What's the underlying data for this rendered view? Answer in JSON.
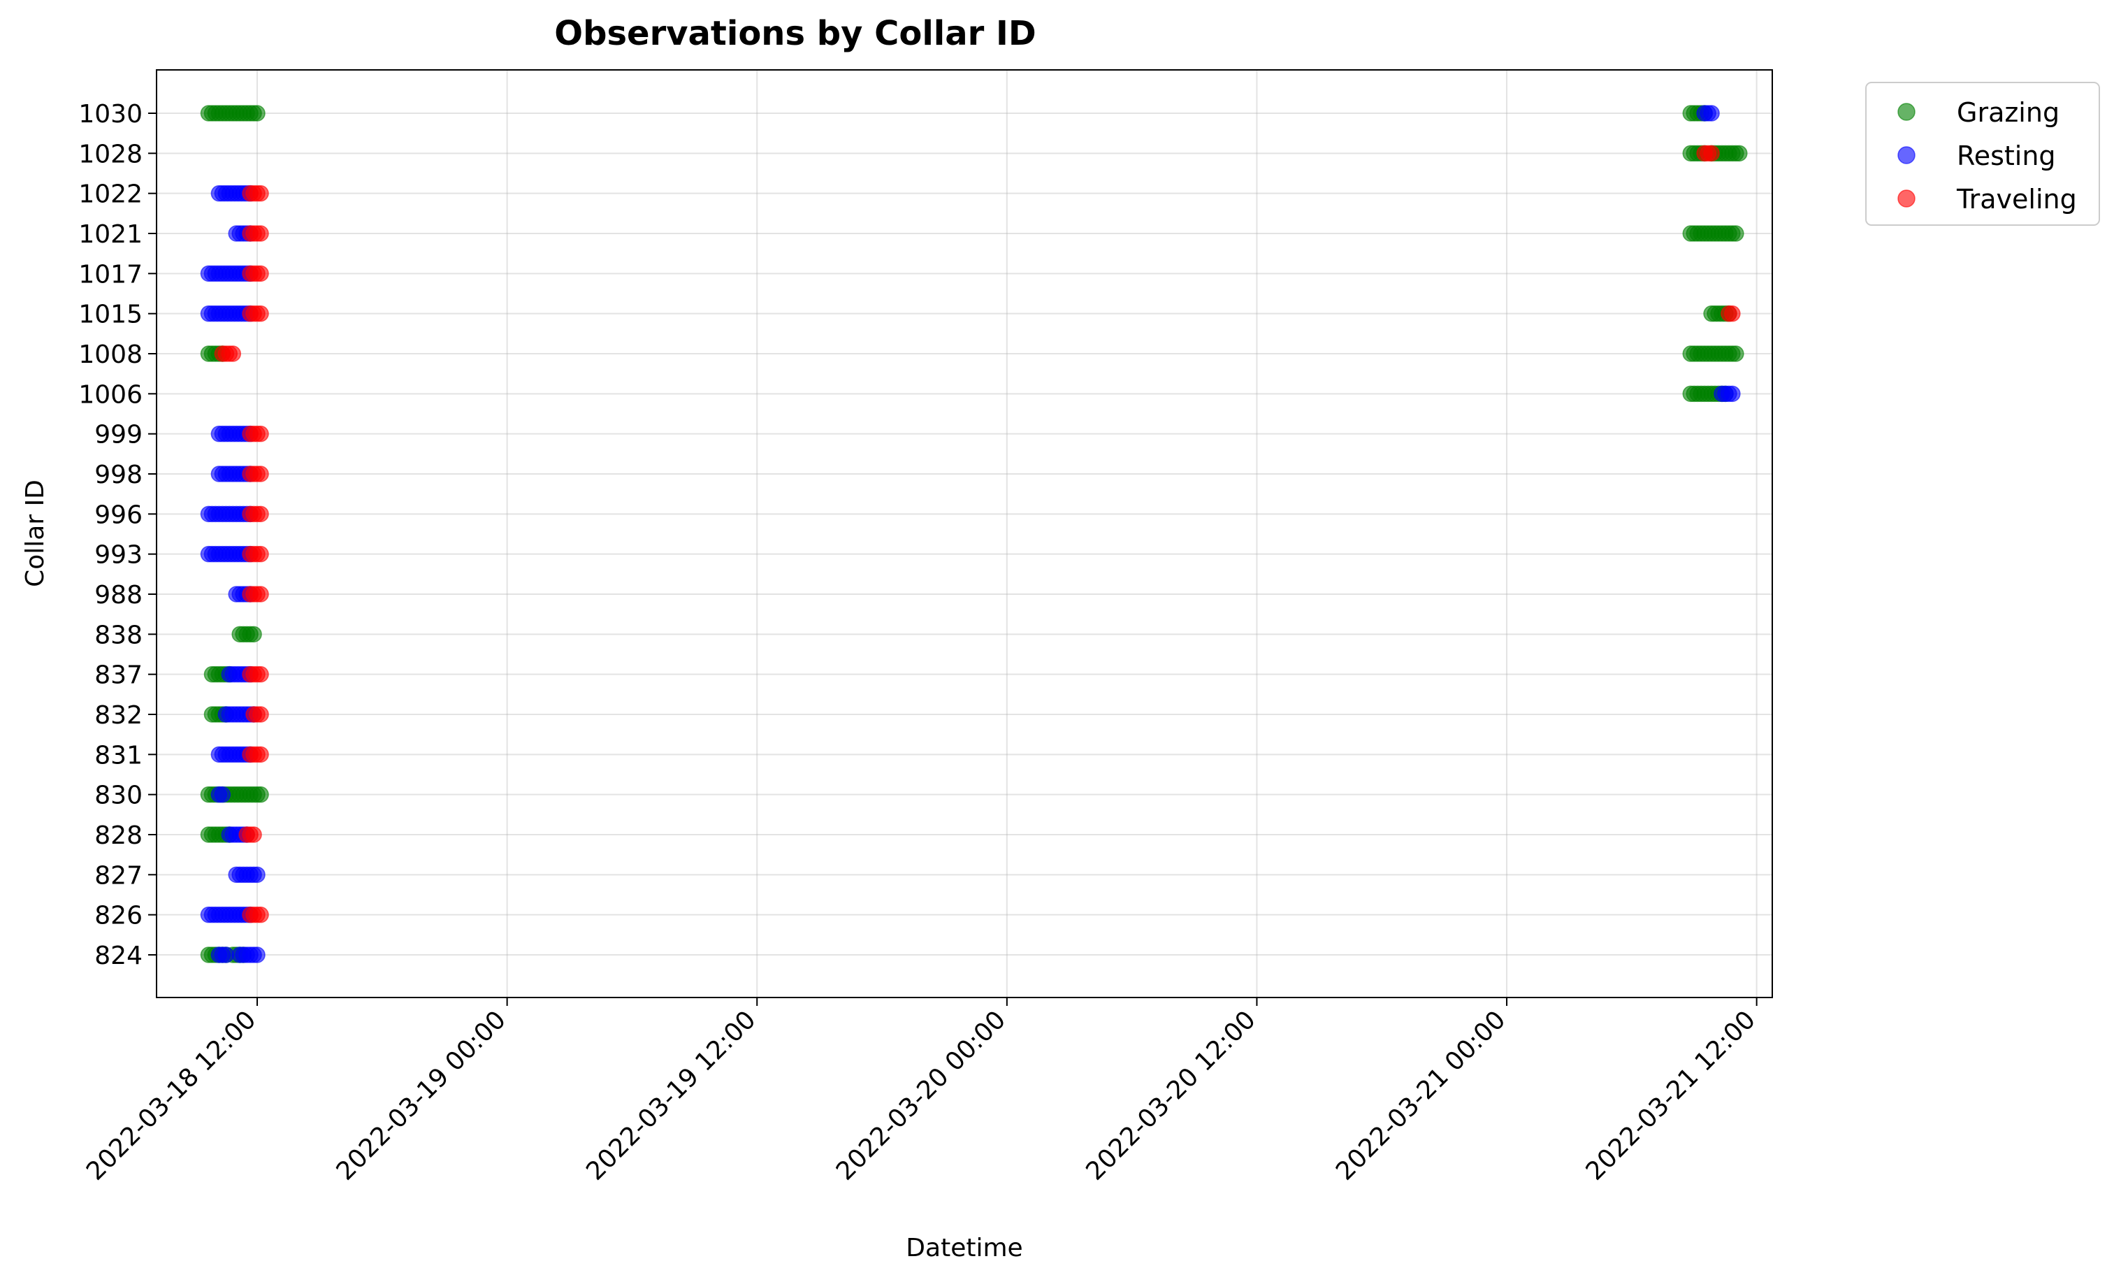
{
  "chart_data": {
    "type": "scatter",
    "title": "Observations by Collar ID",
    "xlabel": "Datetime",
    "ylabel": "Collar ID",
    "x_type": "datetime",
    "xlim": [
      "2022-03-18 07:10",
      "2022-03-21 12:45"
    ],
    "x_ticks": [
      "2022-03-18 12:00",
      "2022-03-19 00:00",
      "2022-03-19 12:00",
      "2022-03-20 00:00",
      "2022-03-20 12:00",
      "2022-03-21 00:00",
      "2022-03-21 12:00"
    ],
    "x_tick_labels": [
      "2022-03-18 12:00",
      "2022-03-19 00:00",
      "2022-03-19 12:00",
      "2022-03-20 00:00",
      "2022-03-20 12:00",
      "2022-03-21 00:00",
      "2022-03-21 12:00"
    ],
    "categories": [
      "824",
      "826",
      "827",
      "828",
      "830",
      "831",
      "832",
      "837",
      "838",
      "988",
      "993",
      "996",
      "998",
      "999",
      "1006",
      "1008",
      "1015",
      "1017",
      "1021",
      "1022",
      "1028",
      "1030"
    ],
    "grid": true,
    "legend_position": "outside-top-right",
    "series": [
      {
        "name": "Grazing",
        "color": "#008000",
        "ranges": [
          [
            "824",
            "2022-03-18 09:40",
            "2022-03-18 10:30"
          ],
          [
            "824",
            "2022-03-18 10:50",
            "2022-03-18 11:20"
          ],
          [
            "828",
            "2022-03-18 09:40",
            "2022-03-18 10:40"
          ],
          [
            "830",
            "2022-03-18 09:40",
            "2022-03-18 10:10"
          ],
          [
            "830",
            "2022-03-18 10:20",
            "2022-03-18 12:10"
          ],
          [
            "832",
            "2022-03-18 09:50",
            "2022-03-18 10:30"
          ],
          [
            "837",
            "2022-03-18 09:50",
            "2022-03-18 10:40"
          ],
          [
            "838",
            "2022-03-18 11:10",
            "2022-03-18 11:50"
          ],
          [
            "1008",
            "2022-03-18 09:40",
            "2022-03-18 10:20"
          ],
          [
            "1030",
            "2022-03-18 09:40",
            "2022-03-18 12:00"
          ],
          [
            "1006",
            "2022-03-21 08:50",
            "2022-03-21 10:30"
          ],
          [
            "1008",
            "2022-03-21 08:50",
            "2022-03-21 11:00"
          ],
          [
            "1015",
            "2022-03-21 09:50",
            "2022-03-21 10:40"
          ],
          [
            "1021",
            "2022-03-21 08:50",
            "2022-03-21 11:00"
          ],
          [
            "1028",
            "2022-03-21 08:50",
            "2022-03-21 09:30"
          ],
          [
            "1028",
            "2022-03-21 09:50",
            "2022-03-21 11:10"
          ],
          [
            "1030",
            "2022-03-21 08:50",
            "2022-03-21 09:30"
          ]
        ]
      },
      {
        "name": "Resting",
        "color": "#0000ff",
        "ranges": [
          [
            "824",
            "2022-03-18 10:10",
            "2022-03-18 10:30"
          ],
          [
            "824",
            "2022-03-18 11:10",
            "2022-03-18 12:00"
          ],
          [
            "826",
            "2022-03-18 09:40",
            "2022-03-18 11:40"
          ],
          [
            "827",
            "2022-03-18 11:00",
            "2022-03-18 12:00"
          ],
          [
            "828",
            "2022-03-18 10:40",
            "2022-03-18 11:30"
          ],
          [
            "830",
            "2022-03-18 10:10",
            "2022-03-18 10:20"
          ],
          [
            "831",
            "2022-03-18 10:10",
            "2022-03-18 11:40"
          ],
          [
            "832",
            "2022-03-18 10:30",
            "2022-03-18 11:50"
          ],
          [
            "837",
            "2022-03-18 10:40",
            "2022-03-18 11:40"
          ],
          [
            "988",
            "2022-03-18 11:00",
            "2022-03-18 11:40"
          ],
          [
            "993",
            "2022-03-18 09:40",
            "2022-03-18 11:40"
          ],
          [
            "996",
            "2022-03-18 09:40",
            "2022-03-18 11:40"
          ],
          [
            "998",
            "2022-03-18 10:10",
            "2022-03-18 11:40"
          ],
          [
            "999",
            "2022-03-18 10:10",
            "2022-03-18 11:40"
          ],
          [
            "1015",
            "2022-03-18 09:40",
            "2022-03-18 11:40"
          ],
          [
            "1017",
            "2022-03-18 09:40",
            "2022-03-18 11:40"
          ],
          [
            "1021",
            "2022-03-18 11:00",
            "2022-03-18 11:40"
          ],
          [
            "1022",
            "2022-03-18 10:10",
            "2022-03-18 11:40"
          ],
          [
            "1006",
            "2022-03-21 10:20",
            "2022-03-21 10:50"
          ],
          [
            "1030",
            "2022-03-21 09:30",
            "2022-03-21 09:50"
          ]
        ]
      },
      {
        "name": "Traveling",
        "color": "#ff0000",
        "ranges": [
          [
            "826",
            "2022-03-18 11:40",
            "2022-03-18 12:10"
          ],
          [
            "828",
            "2022-03-18 11:30",
            "2022-03-18 11:50"
          ],
          [
            "831",
            "2022-03-18 11:40",
            "2022-03-18 12:10"
          ],
          [
            "832",
            "2022-03-18 11:50",
            "2022-03-18 12:10"
          ],
          [
            "837",
            "2022-03-18 11:40",
            "2022-03-18 12:10"
          ],
          [
            "988",
            "2022-03-18 11:40",
            "2022-03-18 12:10"
          ],
          [
            "993",
            "2022-03-18 11:40",
            "2022-03-18 12:10"
          ],
          [
            "996",
            "2022-03-18 11:40",
            "2022-03-18 12:10"
          ],
          [
            "998",
            "2022-03-18 11:40",
            "2022-03-18 12:10"
          ],
          [
            "999",
            "2022-03-18 11:40",
            "2022-03-18 12:10"
          ],
          [
            "1008",
            "2022-03-18 10:20",
            "2022-03-18 10:50"
          ],
          [
            "1015",
            "2022-03-18 11:40",
            "2022-03-18 12:10"
          ],
          [
            "1017",
            "2022-03-18 11:40",
            "2022-03-18 12:10"
          ],
          [
            "1021",
            "2022-03-18 11:40",
            "2022-03-18 12:10"
          ],
          [
            "1022",
            "2022-03-18 11:40",
            "2022-03-18 12:10"
          ],
          [
            "1015",
            "2022-03-21 10:40",
            "2022-03-21 10:50"
          ],
          [
            "1028",
            "2022-03-21 09:30",
            "2022-03-21 09:50"
          ]
        ]
      }
    ]
  }
}
